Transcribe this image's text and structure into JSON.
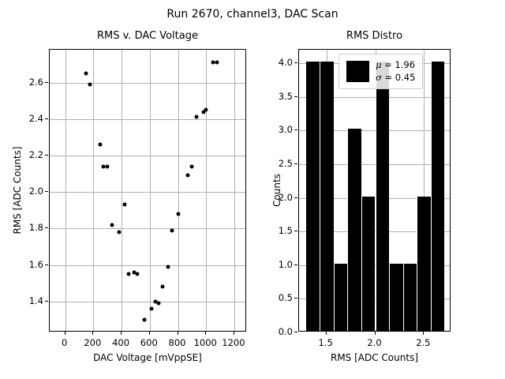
{
  "figure": {
    "suptitle": "Run 2670, channel3, DAC Scan"
  },
  "chart_data": [
    {
      "type": "scatter",
      "title": "RMS v. DAC Voltage",
      "xlabel": "DAC Voltage [mVppSE]",
      "ylabel": "RMS [ADC Counts]",
      "xlim": [
        -110,
        1290
      ],
      "ylim": [
        1.23,
        2.78
      ],
      "xticks": [
        0,
        200,
        400,
        600,
        800,
        1000,
        1200
      ],
      "xtick_labels": [
        "0",
        "200",
        "400",
        "600",
        "800",
        "1000",
        "1200"
      ],
      "yticks": [
        1.4,
        1.6,
        1.8,
        2.0,
        2.2,
        2.4,
        2.6
      ],
      "ytick_labels": [
        "1.4",
        "1.6",
        "1.8",
        "2.0",
        "2.2",
        "2.4",
        "2.6"
      ],
      "grid": true,
      "marker_color": "#000000",
      "points": [
        [
          150,
          2.65
        ],
        [
          175,
          2.59
        ],
        [
          250,
          2.26
        ],
        [
          270,
          2.14
        ],
        [
          300,
          2.14
        ],
        [
          330,
          1.82
        ],
        [
          380,
          1.78
        ],
        [
          420,
          1.93
        ],
        [
          450,
          1.55
        ],
        [
          490,
          1.56
        ],
        [
          510,
          1.55
        ],
        [
          560,
          1.3
        ],
        [
          610,
          1.36
        ],
        [
          640,
          1.4
        ],
        [
          660,
          1.39
        ],
        [
          690,
          1.48
        ],
        [
          730,
          1.59
        ],
        [
          760,
          1.79
        ],
        [
          800,
          1.88
        ],
        [
          870,
          2.09
        ],
        [
          900,
          2.14
        ],
        [
          930,
          2.41
        ],
        [
          980,
          2.44
        ],
        [
          1000,
          2.45
        ],
        [
          1050,
          2.71
        ],
        [
          1075,
          2.71
        ]
      ]
    },
    {
      "type": "bar",
      "title": "RMS Distro",
      "xlabel": "RMS [ADC Counts]",
      "ylabel": "Counts",
      "xlim": [
        1.22,
        2.78
      ],
      "ylim": [
        0,
        4.2
      ],
      "xticks": [
        1.5,
        2.0,
        2.5
      ],
      "xtick_labels": [
        "1.5",
        "2.0",
        "2.5"
      ],
      "yticks": [
        0.0,
        0.5,
        1.0,
        1.5,
        2.0,
        2.5,
        3.0,
        3.5,
        4.0
      ],
      "ytick_labels": [
        "0.0",
        "0.5",
        "1.0",
        "1.5",
        "2.0",
        "2.5",
        "3.0",
        "3.5",
        "4.0"
      ],
      "grid": true,
      "bar_color": "#000000",
      "bin_edges": [
        1.29,
        1.432,
        1.574,
        1.716,
        1.858,
        2.0,
        2.142,
        2.284,
        2.426,
        2.568,
        2.71
      ],
      "counts": [
        4,
        4,
        1,
        3,
        2,
        4,
        1,
        1,
        2,
        4
      ],
      "stats": {
        "mu": 1.96,
        "sigma": 0.45
      },
      "legend": {
        "mu_symbol": "μ",
        "mu_rest": " = 1.96",
        "sigma_symbol": "σ",
        "sigma_rest": " = 0.45"
      }
    }
  ]
}
